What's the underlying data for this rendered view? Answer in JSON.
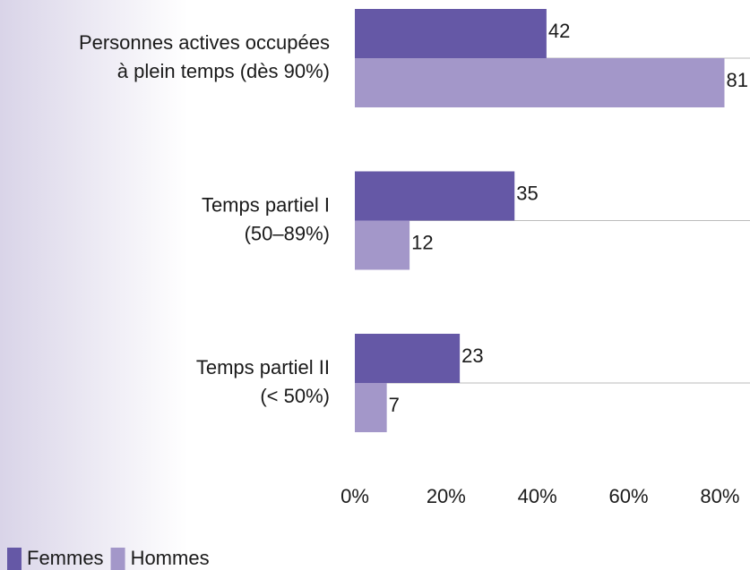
{
  "chart_data": {
    "type": "hbar",
    "categories": [
      [
        "Personnes actives occupées",
        "à plein temps (dès 90%)"
      ],
      [
        "Temps partiel I",
        "(50–89%)"
      ],
      [
        "Temps partiel II",
        "(< 50%)"
      ]
    ],
    "series": [
      {
        "name": "Femmes",
        "color": "#6558a6",
        "values": [
          42,
          35,
          23
        ]
      },
      {
        "name": "Hommes",
        "color": "#a397c9",
        "values": [
          81,
          12,
          7
        ]
      }
    ],
    "xlim": [
      0,
      86.6
    ],
    "xticks": [
      {
        "value": 0,
        "label": "0%"
      },
      {
        "value": 20,
        "label": "20%"
      },
      {
        "value": 40,
        "label": "40%"
      },
      {
        "value": 60,
        "label": "60%"
      },
      {
        "value": 80,
        "label": "80%"
      }
    ],
    "legend": "bottom-left"
  }
}
